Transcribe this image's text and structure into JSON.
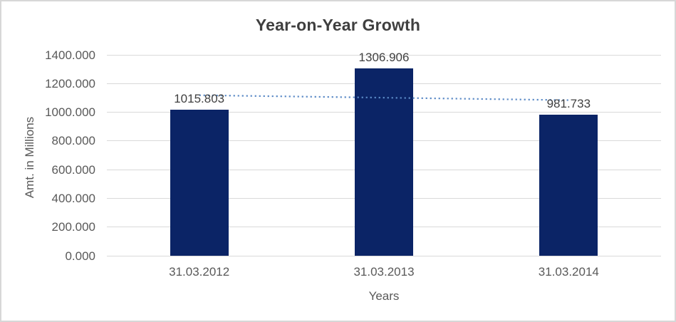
{
  "chart_data": {
    "type": "bar",
    "title": "Year-on-Year Growth",
    "xlabel": "Years",
    "ylabel": "Amt. in Millions",
    "categories": [
      "31.03.2012",
      "31.03.2013",
      "31.03.2014"
    ],
    "values": [
      1015.803,
      1306.906,
      981.733
    ],
    "data_labels": [
      "1015.803",
      "1306.906",
      "981.733"
    ],
    "ylim": [
      0,
      1400
    ],
    "y_tick_interval": 200,
    "y_tick_labels": [
      "0.000",
      "200.000",
      "400.000",
      "600.000",
      "800.000",
      "1000.000",
      "1200.000",
      "1400.000"
    ],
    "grid": true,
    "legend_position": "none",
    "trendline": {
      "type": "linear",
      "style": "dotted"
    },
    "colors": {
      "bar": "#0b2466",
      "trendline": "#5b8ac6",
      "gridline": "#d9d9d9",
      "frame_border": "#d7d7d7",
      "title_text": "#3f3f3f",
      "axis_text": "#595959",
      "data_label_text": "#404040"
    }
  }
}
